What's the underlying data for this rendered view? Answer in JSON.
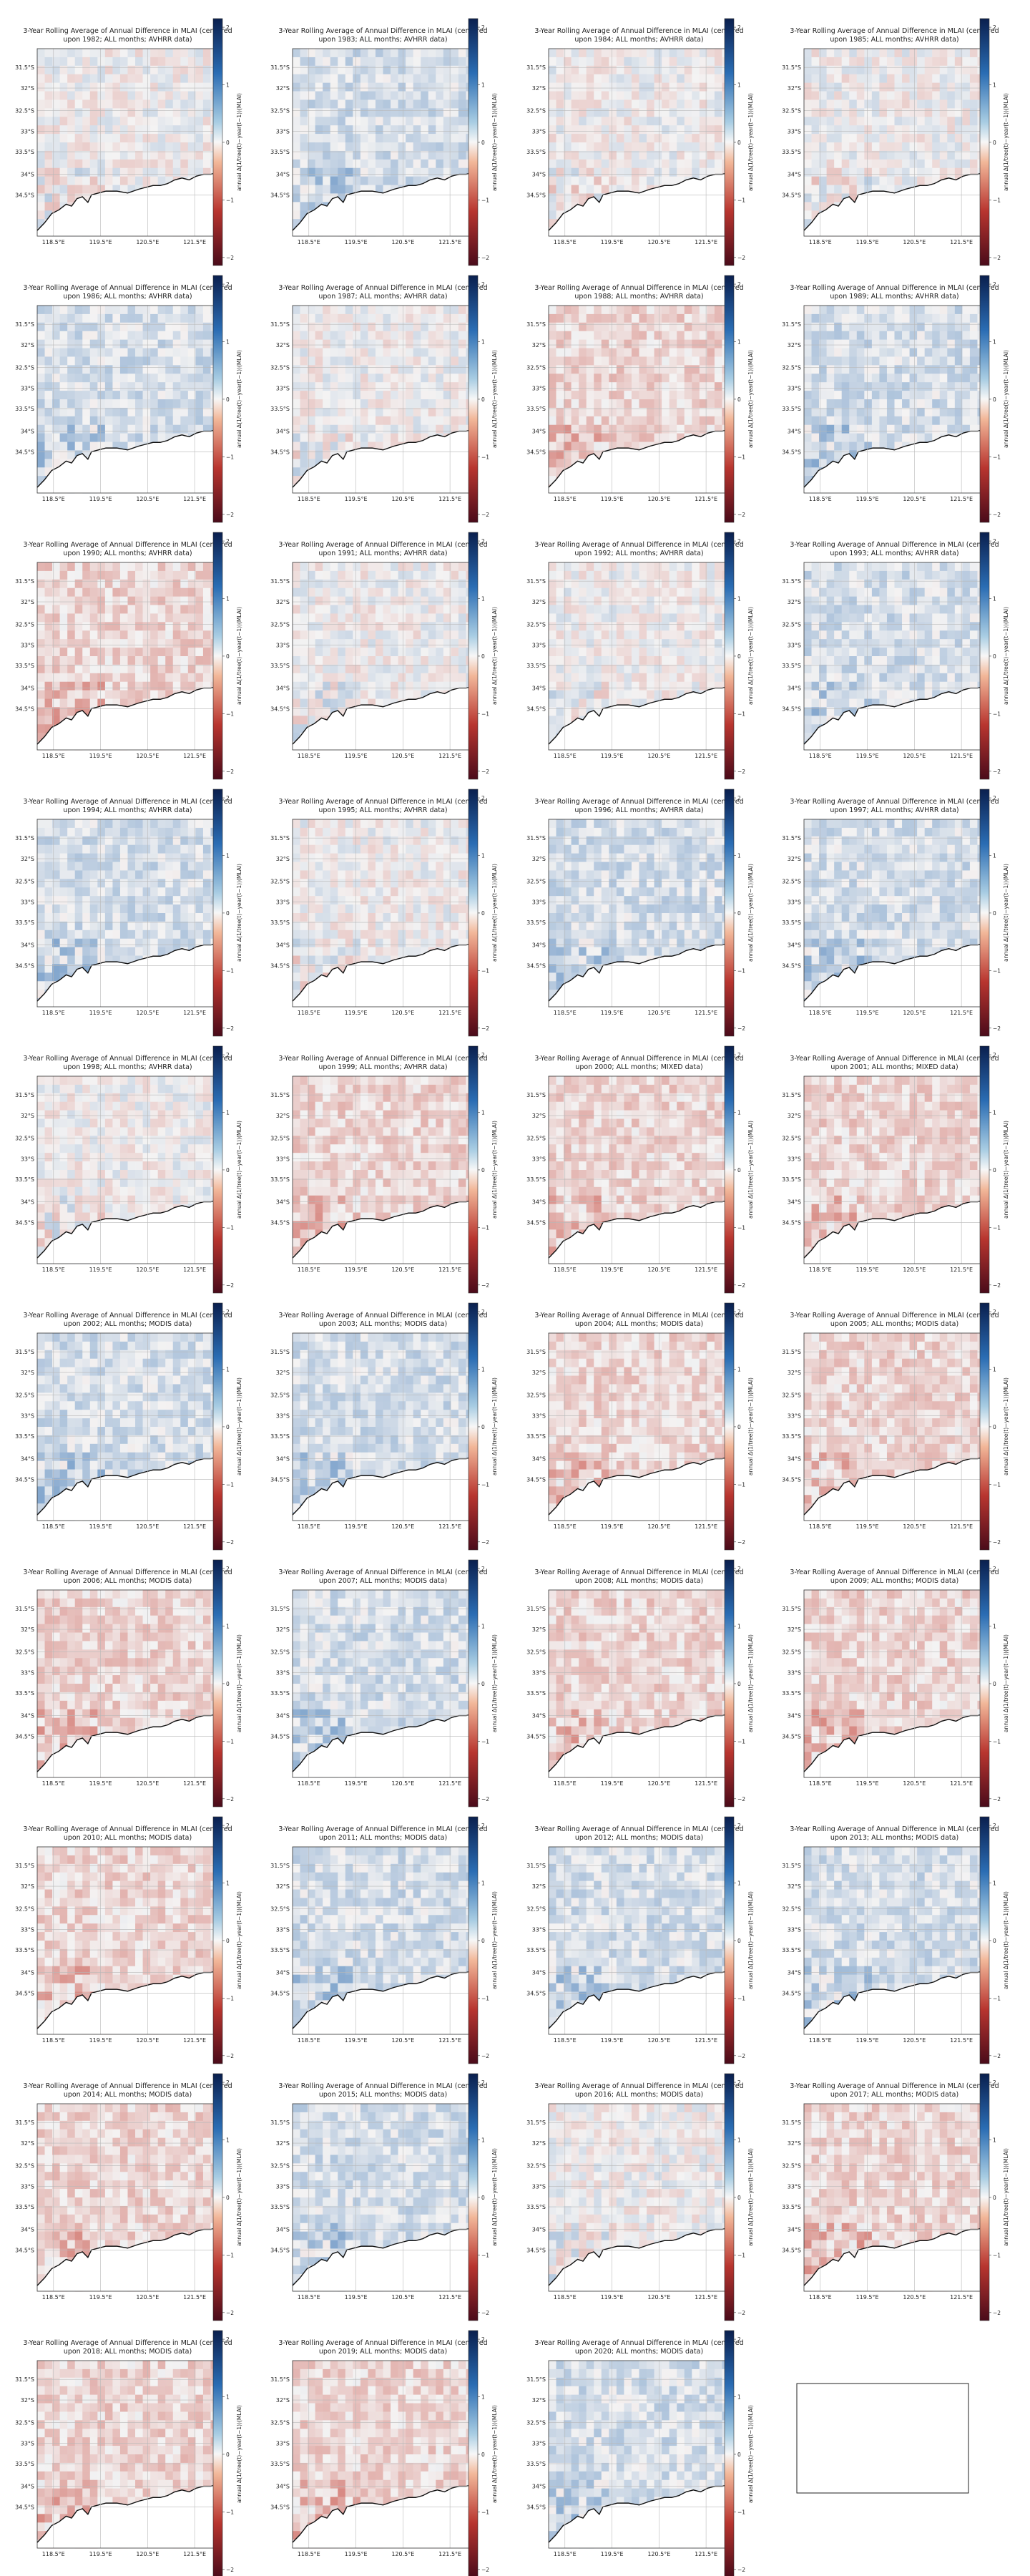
{
  "figure": {
    "title_line1_template": "3-Year Rolling Average of Annual Difference in MLAI (centered",
    "title_line2_template": "upon {year}; ALL months; {source} data)",
    "colorbar_label": "annual Δ(1/tree(t)−year(t−1))(MLAI)",
    "y_ticks": [
      "31.5°S",
      "32°S",
      "32.5°S",
      "33°S",
      "33.5°S",
      "34°S",
      "34.5°S"
    ],
    "x_ticks": [
      "118.5°E",
      "119.5°E",
      "120.5°E",
      "121.5°E"
    ],
    "colorbar_ticks": [
      "2",
      "1",
      "0",
      "−1",
      "−2"
    ],
    "colors": {
      "positive": "#1f5aa8",
      "negative": "#a8202a",
      "neutral": "#f7f7f7",
      "coast": "#111111"
    }
  },
  "chart_data": [
    {
      "type": "heatmap",
      "year": "1982",
      "source": "AVHRR",
      "vlim": [
        -2,
        2
      ],
      "tint": "mixed"
    },
    {
      "type": "heatmap",
      "year": "1983",
      "source": "AVHRR",
      "vlim": [
        -2,
        2
      ],
      "tint": "blue"
    },
    {
      "type": "heatmap",
      "year": "1984",
      "source": "AVHRR",
      "vlim": [
        -2,
        2
      ],
      "tint": "mixed"
    },
    {
      "type": "heatmap",
      "year": "1985",
      "source": "AVHRR",
      "vlim": [
        -2,
        2
      ],
      "tint": "mixed"
    },
    {
      "type": "heatmap",
      "year": "1986",
      "source": "AVHRR",
      "vlim": [
        -2,
        2
      ],
      "tint": "blue"
    },
    {
      "type": "heatmap",
      "year": "1987",
      "source": "AVHRR",
      "vlim": [
        -2,
        2
      ],
      "tint": "mixed"
    },
    {
      "type": "heatmap",
      "year": "1988",
      "source": "AVHRR",
      "vlim": [
        -2,
        2
      ],
      "tint": "red"
    },
    {
      "type": "heatmap",
      "year": "1989",
      "source": "AVHRR",
      "vlim": [
        -2,
        2
      ],
      "tint": "blue"
    },
    {
      "type": "heatmap",
      "year": "1990",
      "source": "AVHRR",
      "vlim": [
        -2,
        2
      ],
      "tint": "red"
    },
    {
      "type": "heatmap",
      "year": "1991",
      "source": "AVHRR",
      "vlim": [
        -2,
        2
      ],
      "tint": "mixed"
    },
    {
      "type": "heatmap",
      "year": "1992",
      "source": "AVHRR",
      "vlim": [
        -2,
        2
      ],
      "tint": "mixed"
    },
    {
      "type": "heatmap",
      "year": "1993",
      "source": "AVHRR",
      "vlim": [
        -2,
        2
      ],
      "tint": "blue"
    },
    {
      "type": "heatmap",
      "year": "1994",
      "source": "AVHRR",
      "vlim": [
        -2,
        2
      ],
      "tint": "blue"
    },
    {
      "type": "heatmap",
      "year": "1995",
      "source": "AVHRR",
      "vlim": [
        -2,
        2
      ],
      "tint": "mixed"
    },
    {
      "type": "heatmap",
      "year": "1996",
      "source": "AVHRR",
      "vlim": [
        -2,
        2
      ],
      "tint": "blue"
    },
    {
      "type": "heatmap",
      "year": "1997",
      "source": "AVHRR",
      "vlim": [
        -2,
        2
      ],
      "tint": "blue"
    },
    {
      "type": "heatmap",
      "year": "1998",
      "source": "AVHRR",
      "vlim": [
        -2,
        2
      ],
      "tint": "mixed"
    },
    {
      "type": "heatmap",
      "year": "1999",
      "source": "AVHRR",
      "vlim": [
        -2,
        2
      ],
      "tint": "red"
    },
    {
      "type": "heatmap",
      "year": "2000",
      "source": "MIXED",
      "vlim": [
        -2,
        2
      ],
      "tint": "red"
    },
    {
      "type": "heatmap",
      "year": "2001",
      "source": "MIXED",
      "vlim": [
        -2,
        2
      ],
      "tint": "red"
    },
    {
      "type": "heatmap",
      "year": "2002",
      "source": "MODIS",
      "vlim": [
        -2,
        2
      ],
      "tint": "blue"
    },
    {
      "type": "heatmap",
      "year": "2003",
      "source": "MODIS",
      "vlim": [
        -2,
        2
      ],
      "tint": "blue"
    },
    {
      "type": "heatmap",
      "year": "2004",
      "source": "MODIS",
      "vlim": [
        -2,
        2
      ],
      "tint": "red"
    },
    {
      "type": "heatmap",
      "year": "2005",
      "source": "MODIS",
      "vlim": [
        -2,
        2
      ],
      "tint": "red"
    },
    {
      "type": "heatmap",
      "year": "2006",
      "source": "MODIS",
      "vlim": [
        -2,
        2
      ],
      "tint": "red"
    },
    {
      "type": "heatmap",
      "year": "2007",
      "source": "MODIS",
      "vlim": [
        -2,
        2
      ],
      "tint": "blue"
    },
    {
      "type": "heatmap",
      "year": "2008",
      "source": "MODIS",
      "vlim": [
        -2,
        2
      ],
      "tint": "red"
    },
    {
      "type": "heatmap",
      "year": "2009",
      "source": "MODIS",
      "vlim": [
        -2,
        2
      ],
      "tint": "red"
    },
    {
      "type": "heatmap",
      "year": "2010",
      "source": "MODIS",
      "vlim": [
        -2,
        2
      ],
      "tint": "red"
    },
    {
      "type": "heatmap",
      "year": "2011",
      "source": "MODIS",
      "vlim": [
        -2,
        2
      ],
      "tint": "blue"
    },
    {
      "type": "heatmap",
      "year": "2012",
      "source": "MODIS",
      "vlim": [
        -2,
        2
      ],
      "tint": "blue"
    },
    {
      "type": "heatmap",
      "year": "2013",
      "source": "MODIS",
      "vlim": [
        -2,
        2
      ],
      "tint": "blue"
    },
    {
      "type": "heatmap",
      "year": "2014",
      "source": "MODIS",
      "vlim": [
        -2,
        2
      ],
      "tint": "red"
    },
    {
      "type": "heatmap",
      "year": "2015",
      "source": "MODIS",
      "vlim": [
        -2,
        2
      ],
      "tint": "blue"
    },
    {
      "type": "heatmap",
      "year": "2016",
      "source": "MODIS",
      "vlim": [
        -2,
        2
      ],
      "tint": "mixed"
    },
    {
      "type": "heatmap",
      "year": "2017",
      "source": "MODIS",
      "vlim": [
        -2,
        2
      ],
      "tint": "red"
    },
    {
      "type": "heatmap",
      "year": "2018",
      "source": "MODIS",
      "vlim": [
        -2,
        2
      ],
      "tint": "red"
    },
    {
      "type": "heatmap",
      "year": "2019",
      "source": "MODIS",
      "vlim": [
        -2,
        2
      ],
      "tint": "red"
    },
    {
      "type": "heatmap",
      "year": "2020",
      "source": "MODIS",
      "vlim": [
        -2,
        2
      ],
      "tint": "blue"
    }
  ]
}
